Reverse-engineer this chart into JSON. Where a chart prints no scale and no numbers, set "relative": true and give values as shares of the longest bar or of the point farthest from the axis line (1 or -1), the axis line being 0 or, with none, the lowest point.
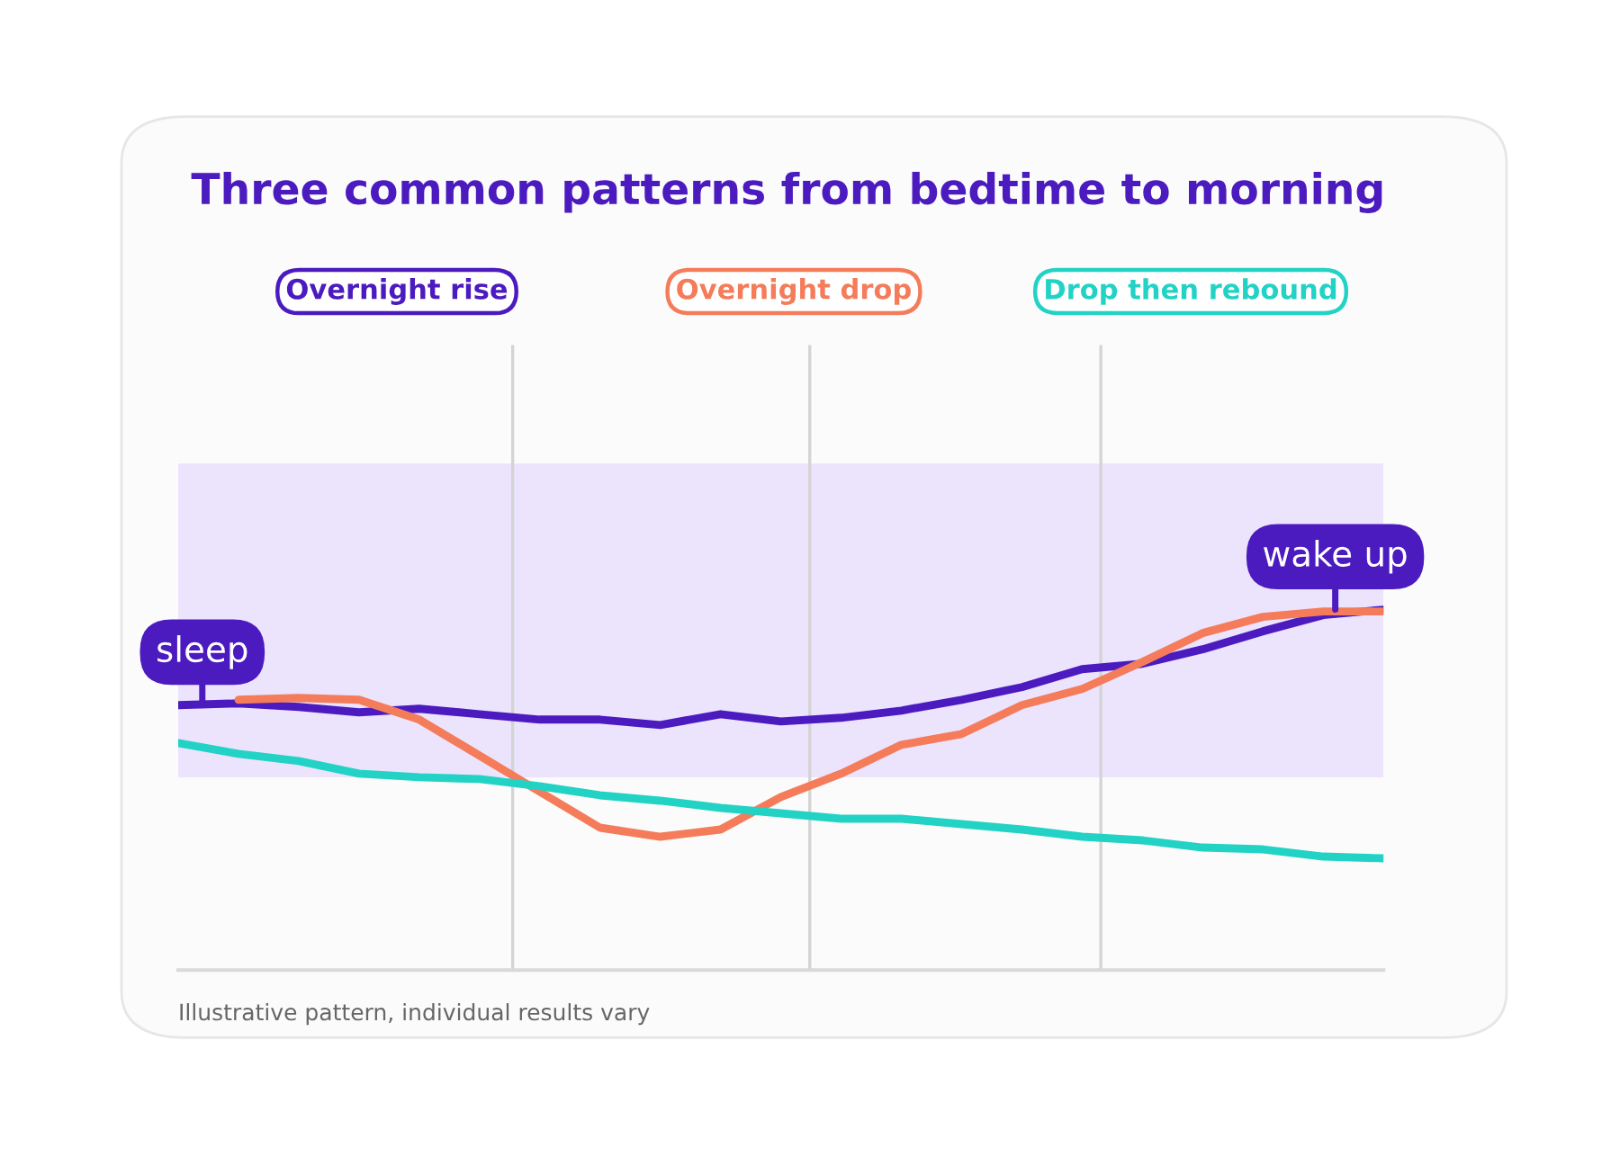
{
  "chart_data": {
    "type": "line",
    "title": "Three common patterns from bedtime to morning",
    "relative": true,
    "marker": "none",
    "line_style": "solid",
    "categories": [
      null,
      null,
      null,
      null,
      null,
      null,
      null,
      null,
      null,
      null,
      null,
      null,
      null,
      null,
      null,
      null,
      null,
      null,
      null,
      null,
      null
    ],
    "series": [
      {
        "name": "Overnight rise",
        "color": "#4b1bbf",
        "values": [
          0.735,
          0.74,
          0.73,
          0.715,
          0.725,
          0.71,
          0.695,
          0.695,
          0.68,
          0.71,
          0.69,
          0.7,
          0.72,
          0.75,
          0.785,
          0.835,
          0.85,
          0.89,
          0.94,
          0.985,
          1.0
        ]
      },
      {
        "name": "Overnight drop",
        "color": "#f47c5a",
        "values": [
          null,
          0.75,
          0.755,
          0.75,
          0.695,
          0.595,
          0.495,
          0.395,
          0.37,
          0.39,
          0.48,
          0.545,
          0.625,
          0.655,
          0.735,
          0.78,
          0.855,
          0.935,
          0.98,
          0.995,
          0.995
        ]
      },
      {
        "name": "Drop then rebound",
        "color": "#22d3c5",
        "values": [
          0.63,
          0.6,
          0.58,
          0.545,
          0.535,
          0.53,
          0.51,
          0.485,
          0.47,
          0.45,
          0.435,
          0.42,
          0.42,
          0.405,
          0.39,
          0.37,
          0.36,
          0.34,
          0.335,
          0.315,
          0.31
        ]
      }
    ],
    "bands": [
      {
        "axis": "y",
        "from": 0.535,
        "to": 1.405,
        "color": "#ece3fd"
      }
    ],
    "annotations": [
      "sleep",
      "wake up",
      "Illustrative pattern, individual results vary"
    ]
  }
}
